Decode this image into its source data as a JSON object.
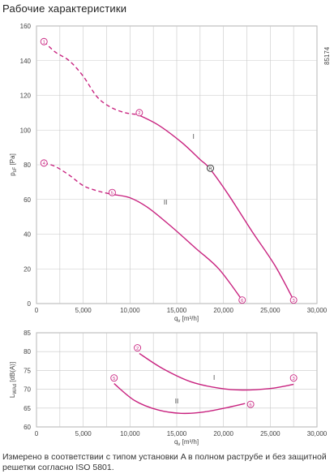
{
  "title": "Рабочие характеристики",
  "code": "85174",
  "footnote": "Измерено в соответствии с типом установки A в полном раструбе и без защитной решетки согласно ISO 5801.",
  "colors": {
    "curve": "#c8227f",
    "grid": "#c8c8c8",
    "axis": "#888888"
  },
  "chart_data": [
    {
      "type": "line",
      "ylabel": "p_sF [Pa]",
      "xlabel": "q_v [m³/h]",
      "xlim": [
        0,
        30000
      ],
      "ylim": [
        0,
        160
      ],
      "x_ticks": [
        "0",
        "5,000",
        "10,000",
        "15,000",
        "20,000",
        "25,000",
        "30,000"
      ],
      "y_ticks": [
        "0",
        "20",
        "40",
        "60",
        "80",
        "100",
        "120",
        "140",
        "160"
      ],
      "series": [
        {
          "name": "I",
          "dashed_points": [
            [
              800,
              151
            ],
            [
              2000,
              145
            ],
            [
              3500,
              140
            ],
            [
              5000,
              131
            ],
            [
              6500,
              119
            ],
            [
              8000,
              113
            ],
            [
              9500,
              110
            ],
            [
              10800,
              109
            ]
          ],
          "solid_points": [
            [
              10800,
              109
            ],
            [
              13000,
              103
            ],
            [
              15500,
              93
            ],
            [
              17500,
              83
            ],
            [
              18500,
              78
            ],
            [
              20500,
              63
            ],
            [
              23000,
              42
            ],
            [
              25500,
              22
            ],
            [
              27500,
              2
            ]
          ]
        },
        {
          "name": "II",
          "dashed_points": [
            [
              800,
              81
            ],
            [
              2000,
              79
            ],
            [
              3500,
              74
            ],
            [
              5000,
              68
            ],
            [
              6500,
              65
            ],
            [
              8000,
              63
            ]
          ],
          "solid_points": [
            [
              8000,
              63
            ],
            [
              10000,
              61
            ],
            [
              12000,
              55
            ],
            [
              14500,
              44
            ],
            [
              17000,
              32
            ],
            [
              19500,
              20
            ],
            [
              22000,
              2
            ]
          ]
        }
      ],
      "markers": [
        {
          "label": "1",
          "x": 800,
          "y": 151
        },
        {
          "label": "2",
          "x": 11000,
          "y": 110
        },
        {
          "label": "3",
          "x": 27500,
          "y": 2
        },
        {
          "label": "4",
          "x": 800,
          "y": 81
        },
        {
          "label": "5",
          "x": 8100,
          "y": 64
        },
        {
          "label": "6",
          "x": 22000,
          "y": 2
        },
        {
          "label": "R",
          "x": 18600,
          "y": 78,
          "dark": true
        }
      ],
      "curve_labels": [
        {
          "label": "I",
          "x": 16800,
          "y": 95
        },
        {
          "label": "II",
          "x": 13800,
          "y": 57
        }
      ]
    },
    {
      "type": "line",
      "ylabel": "L_WAd [dB(A)]",
      "xlabel": "q_v [m³/h]",
      "xlim": [
        0,
        30000
      ],
      "ylim": [
        60,
        85
      ],
      "x_ticks": [
        "0",
        "5,000",
        "10,000",
        "15,000",
        "20,000",
        "25,000",
        "30,000"
      ],
      "y_ticks": [
        "60",
        "65",
        "70",
        "75",
        "80",
        "85"
      ],
      "series": [
        {
          "name": "I",
          "points": [
            [
              11000,
              79.5
            ],
            [
              13500,
              75.5
            ],
            [
              16500,
              72
            ],
            [
              19500,
              70.3
            ],
            [
              22000,
              69.8
            ],
            [
              25000,
              70.2
            ],
            [
              27500,
              71.3
            ]
          ]
        },
        {
          "name": "II",
          "points": [
            [
              8300,
              71.5
            ],
            [
              10500,
              67
            ],
            [
              13000,
              64.5
            ],
            [
              15500,
              63.6
            ],
            [
              18000,
              64
            ],
            [
              20500,
              65.2
            ],
            [
              22300,
              66.2
            ]
          ]
        }
      ],
      "markers": [
        {
          "label": "2",
          "x": 10800,
          "y": 81
        },
        {
          "label": "3",
          "x": 27500,
          "y": 73
        },
        {
          "label": "5",
          "x": 8300,
          "y": 73
        },
        {
          "label": "6",
          "x": 22900,
          "y": 66
        }
      ],
      "curve_labels": [
        {
          "label": "I",
          "x": 19000,
          "y": 72.5
        },
        {
          "label": "II",
          "x": 15000,
          "y": 66.3
        }
      ]
    }
  ]
}
